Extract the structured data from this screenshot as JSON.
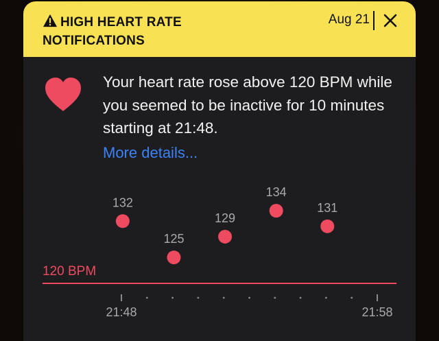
{
  "notification": {
    "title": "HIGH HEART RATE NOTIFICATIONS",
    "date": "Aug 21",
    "message": "Your heart rate rose above 120 BPM while you seemed to be inactive for 10 minutes starting at 21:48.",
    "more_details": "More details..."
  },
  "icons": {
    "warning": "warning-triangle-icon",
    "close": "close-icon",
    "heart": "heart-icon"
  },
  "colors": {
    "header_bg": "#f9e154",
    "card_bg": "#1d1d1f",
    "accent": "#ee4b60",
    "link": "#3b82f6"
  },
  "chart_data": {
    "type": "scatter",
    "threshold": 120,
    "threshold_label": "120 BPM",
    "y_range": [
      116,
      136
    ],
    "x_start_label": "21:48",
    "x_end_label": "21:58",
    "minor_ticks": 9,
    "points": [
      {
        "slot": 0,
        "value": 132
      },
      {
        "slot": 2,
        "value": 125
      },
      {
        "slot": 4,
        "value": 129
      },
      {
        "slot": 6,
        "value": 134
      },
      {
        "slot": 8,
        "value": 131
      }
    ]
  }
}
